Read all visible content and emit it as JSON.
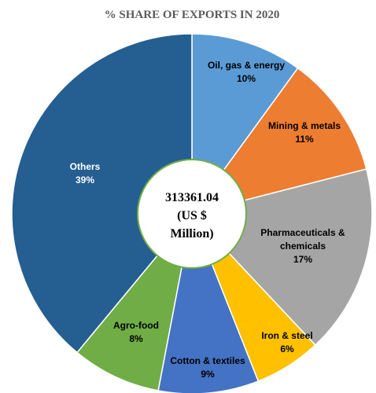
{
  "chart_data": {
    "type": "pie",
    "title": "% SHARE OF EXPORTS IN 2020",
    "center_label": [
      "313361.04",
      "(US $",
      "Million)"
    ],
    "slices": [
      {
        "name": "Oil, gas & energy",
        "value": 10,
        "value_label": "10%",
        "color": "#5B9BD5",
        "label_color": "#000000"
      },
      {
        "name": "Mining & metals",
        "value": 11,
        "value_label": "11%",
        "color": "#ED7D31",
        "label_color": "#000000"
      },
      {
        "name": "Pharmaceuticals & chemicals",
        "value": 17,
        "value_label": "17%",
        "color": "#A5A5A5",
        "label_color": "#000000"
      },
      {
        "name": "Iron & steel",
        "value": 6,
        "value_label": "6%",
        "color": "#FFC000",
        "label_color": "#000000"
      },
      {
        "name": "Cotton & textiles",
        "value": 9,
        "value_label": "9%",
        "color": "#4472C4",
        "label_color": "#000000"
      },
      {
        "name": "Agro-food",
        "value": 8,
        "value_label": "8%",
        "color": "#70AD47",
        "label_color": "#000000"
      },
      {
        "name": "Others",
        "value": 39,
        "value_label": "39%",
        "color": "#255E91",
        "label_color": "#ffffff"
      }
    ]
  }
}
